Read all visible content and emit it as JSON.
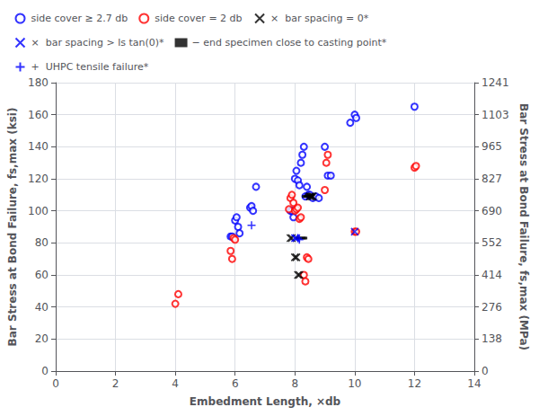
{
  "chart_data": {
    "type": "scatter",
    "title": "",
    "xlabel": "Embedment Length, ×db",
    "ylabel": "Bar Stress at Bond Failure, fs,max (ksi)",
    "y2label": "Bar Stress at Bond Failure, fs,max (MPa)",
    "xlim": [
      0,
      14
    ],
    "ylim": [
      0,
      180
    ],
    "y2lim": [
      0,
      1241
    ],
    "xticks": [
      0,
      2,
      4,
      6,
      8,
      10,
      12,
      14
    ],
    "yticks": [
      0,
      20,
      40,
      60,
      80,
      100,
      120,
      140,
      160,
      180
    ],
    "y2ticks": [
      0,
      138,
      276,
      414,
      552,
      690,
      827,
      965,
      1103,
      1241
    ],
    "grid": true,
    "legend": "upper left",
    "series": [
      {
        "name": "side cover ≥ 2.7 db",
        "color": "blue",
        "marker": "circle_open",
        "x": [
          5.85,
          5.9,
          6.0,
          6.05,
          6.1,
          6.15,
          6.5,
          6.55,
          6.6,
          6.7,
          7.85,
          7.9,
          7.95,
          8.0,
          8.05,
          8.1,
          8.15,
          8.2,
          8.25,
          8.3,
          8.35,
          8.4,
          8.45,
          8.5,
          8.6,
          8.7,
          8.8,
          9.0,
          9.1,
          9.2,
          9.85,
          10.0,
          10.05,
          12.0
        ],
        "values": [
          84,
          84,
          94,
          96,
          90,
          86,
          102,
          103,
          100,
          115,
          100,
          100,
          96,
          120,
          125,
          119,
          116,
          130,
          135,
          140,
          109,
          115,
          110,
          110,
          108,
          109,
          108,
          140,
          122,
          122,
          155,
          160,
          158,
          165
        ]
      },
      {
        "name": "side cover = 2 db",
        "color": "red",
        "marker": "circle_open",
        "x": [
          4.0,
          4.1,
          5.85,
          5.9,
          5.95,
          6.0,
          7.8,
          7.85,
          7.9,
          7.95,
          8.0,
          8.05,
          8.1,
          8.15,
          8.2,
          8.3,
          8.35,
          8.4,
          8.45,
          9.0,
          9.05,
          9.1,
          10.0,
          10.05,
          12.0,
          12.05
        ],
        "values": [
          42,
          48,
          75,
          70,
          83,
          82,
          101,
          108,
          110,
          105,
          100,
          101,
          102,
          95,
          96,
          60,
          56,
          71,
          70,
          113,
          130,
          135,
          87,
          87,
          127,
          128
        ]
      },
      {
        "name": "×  bar spacing = 0*",
        "color": "black",
        "marker": "x",
        "x": [
          7.85,
          7.9,
          8.0,
          8.05,
          8.1,
          8.15,
          8.5,
          8.55,
          8.6
        ],
        "values": [
          83,
          83,
          71,
          71,
          60,
          60,
          109,
          109,
          109
        ]
      },
      {
        "name": "×  bar spacing > ls tan(0)*",
        "color": "blue",
        "marker": "x",
        "x": [
          8.0,
          8.05,
          10.0
        ],
        "values": [
          83,
          83,
          87
        ]
      },
      {
        "name": "− end specimen close to casting point*",
        "color": "black",
        "marker": "dash",
        "x": [
          8.4,
          8.45,
          8.5,
          8.2,
          8.25
        ],
        "values": [
          109,
          109,
          110,
          83,
          83
        ]
      },
      {
        "name": "+  UHPC tensile failure*",
        "color": "blue",
        "marker": "plus",
        "x": [
          6.55,
          8.1,
          8.15
        ],
        "values": [
          91,
          83,
          82
        ]
      }
    ]
  }
}
